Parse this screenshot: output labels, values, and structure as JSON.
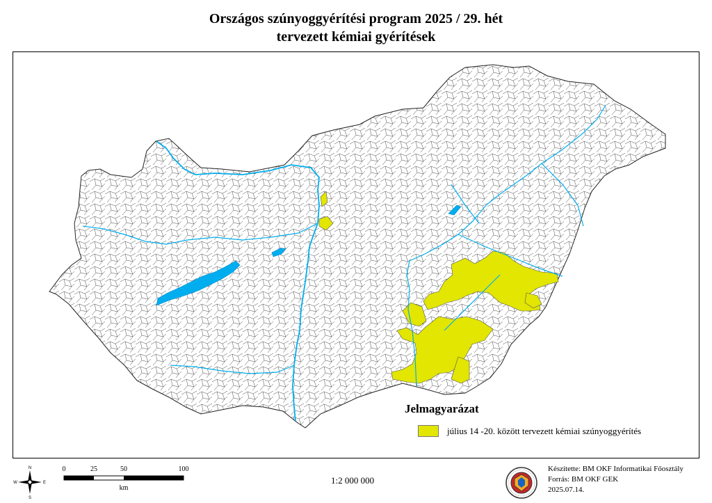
{
  "title": {
    "line1": "Országos szúnyoggyérítési program 2025 / 29. hét",
    "line2": "tervezett kémiai gyérítések"
  },
  "legend": {
    "title": "Jelmagyarázat",
    "items": [
      {
        "label": "július 14 -20. között tervezett kémiai szúnyoggyérítés",
        "color": "#e2e600"
      }
    ]
  },
  "colors": {
    "water": "#00aeef",
    "treated": "#e2e600",
    "boundary": "#333333"
  },
  "compass": {
    "n": "N",
    "s": "S",
    "e": "E",
    "w": "W"
  },
  "scale_bar": {
    "ticks": [
      "0",
      "25",
      "50",
      "100"
    ],
    "unit": "km"
  },
  "scale_ratio": "1:2 000 000",
  "credits": {
    "author": "Készítette: BM OKF Informatikai Főosztály",
    "source": "Forrás: BM OKF GEK",
    "date": "2025.07.14."
  },
  "icons": {
    "emblem": "fire-rescue-emblem-icon",
    "compass": "compass-rose-icon"
  }
}
